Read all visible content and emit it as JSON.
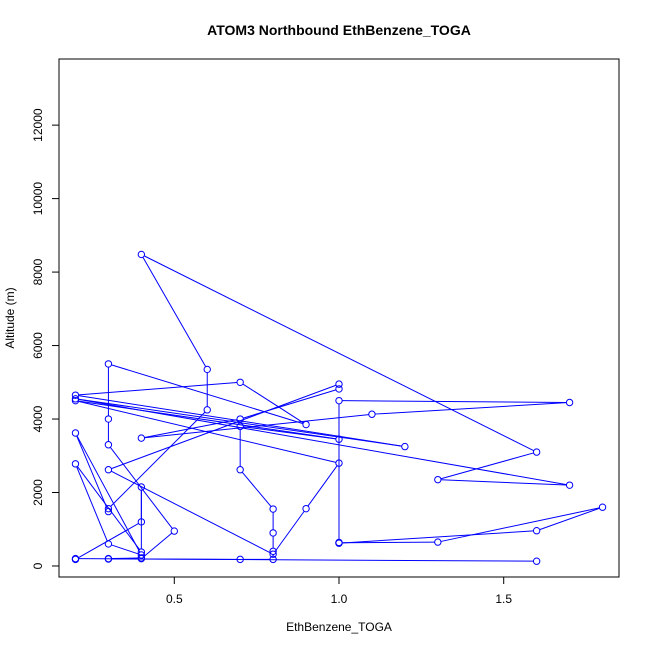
{
  "chart_data": {
    "type": "line",
    "title": "ATOM3 Northbound EthBenzene_TOGA",
    "xlabel": "EthBenzene_TOGA",
    "ylabel": "Altitude (m)",
    "xlim": [
      0.15,
      1.85
    ],
    "ylim": [
      -300,
      13800
    ],
    "x_ticks": [
      0.5,
      1.0,
      1.5
    ],
    "x_tick_labels": [
      "0.5",
      "1.0",
      "1.5"
    ],
    "y_ticks": [
      0,
      2000,
      4000,
      6000,
      8000,
      10000,
      12000
    ],
    "y_tick_labels": [
      "0",
      "2000",
      "4000",
      "6000",
      "8000",
      "10000",
      "12000"
    ],
    "grid": false,
    "series": [
      {
        "color": "#0000ff",
        "marker": "open-circle",
        "points": [
          [
            1.6,
            130
          ],
          [
            0.2,
            200
          ],
          [
            0.2,
            180
          ],
          [
            0.4,
            1200
          ],
          [
            0.4,
            2150
          ],
          [
            0.4,
            380
          ],
          [
            0.2,
            2780
          ],
          [
            0.3,
            600
          ],
          [
            0.4,
            300
          ],
          [
            0.2,
            3620
          ],
          [
            0.3,
            1480
          ],
          [
            0.3,
            1560
          ],
          [
            0.6,
            4250
          ],
          [
            0.6,
            5350
          ],
          [
            0.4,
            8480
          ],
          [
            1.6,
            3100
          ],
          [
            1.3,
            2350
          ],
          [
            1.7,
            2200
          ],
          [
            0.2,
            4550
          ],
          [
            1.2,
            3250
          ],
          [
            0.2,
            4650
          ],
          [
            0.7,
            5000
          ],
          [
            0.9,
            3850
          ],
          [
            0.3,
            5500
          ],
          [
            0.3,
            4000
          ],
          [
            0.3,
            3300
          ],
          [
            0.5,
            950
          ],
          [
            0.4,
            200
          ],
          [
            0.4,
            220
          ],
          [
            0.3,
            200
          ],
          [
            0.3,
            190
          ],
          [
            0.7,
            180
          ],
          [
            0.8,
            180
          ],
          [
            0.8,
            400
          ],
          [
            0.8,
            900
          ],
          [
            0.8,
            1550
          ],
          [
            0.7,
            2620
          ],
          [
            0.7,
            3800
          ],
          [
            1.0,
            3450
          ],
          [
            0.2,
            4500
          ],
          [
            1.0,
            2800
          ],
          [
            0.9,
            1560
          ],
          [
            0.8,
            320
          ],
          [
            0.3,
            2620
          ],
          [
            1.0,
            4950
          ],
          [
            1.0,
            4820
          ],
          [
            0.7,
            4000
          ],
          [
            0.4,
            3480
          ],
          [
            1.1,
            4130
          ],
          [
            1.7,
            4450
          ],
          [
            1.0,
            4500
          ],
          [
            1.0,
            640
          ],
          [
            1.0,
            630
          ],
          [
            1.3,
            650
          ],
          [
            1.8,
            1600
          ],
          [
            1.6,
            960
          ],
          [
            1.0,
            620
          ]
        ]
      }
    ]
  }
}
